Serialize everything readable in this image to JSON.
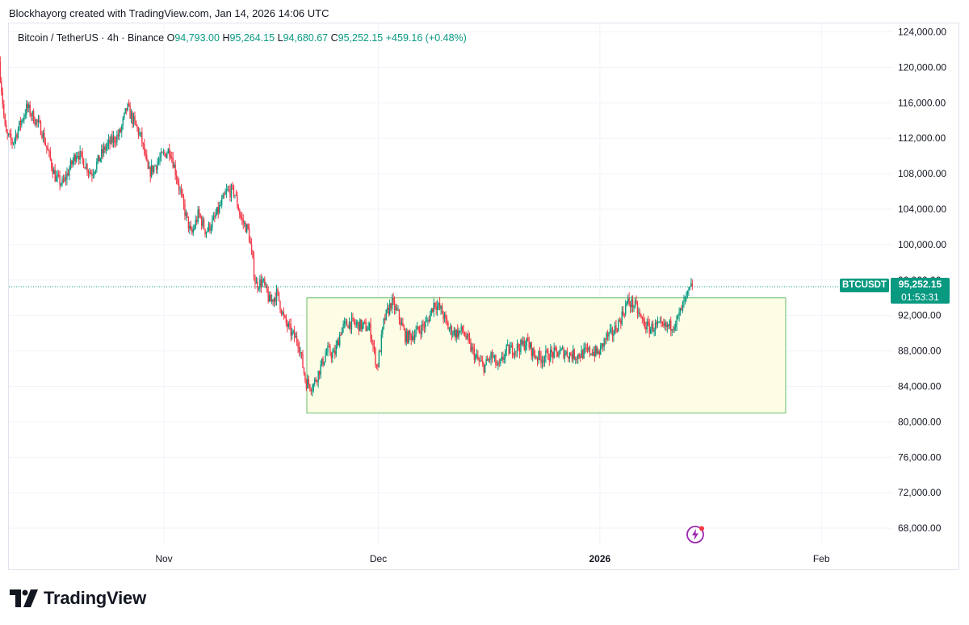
{
  "attribution": "Blockhayorg created with TradingView.com, Jan 14, 2026 14:06 UTC",
  "legend": {
    "symbol": "Bitcoin / TetherUS · 4h · Binance",
    "o_label": "O",
    "o_value": "94,793.00",
    "h_label": "H",
    "h_value": "95,264.15",
    "l_label": "L",
    "l_value": "94,680.67",
    "c_label": "C",
    "c_value": "95,252.15",
    "change": "+459.16 (+0.48%)"
  },
  "price_tag": {
    "symbol": "BTCUSDT",
    "price": "95,252.15",
    "countdown": "01:53:31"
  },
  "brand": "TradingView",
  "colors": {
    "up": "#089981",
    "down": "#f23645",
    "range_fill": "#fdfde6",
    "range_stroke": "#81c784"
  },
  "chart_data": {
    "type": "candlestick",
    "interval": "4h",
    "y_ticks": [
      "124,000.00",
      "120,000.00",
      "116,000.00",
      "112,000.00",
      "108,000.00",
      "104,000.00",
      "100,000.00",
      "96,000.00",
      "92,000.00",
      "88,000.00",
      "84,000.00",
      "80,000.00",
      "76,000.00",
      "72,000.00",
      "68,000.00"
    ],
    "x_ticks": [
      {
        "label": "Nov",
        "date": "2025-11-01",
        "bold": false
      },
      {
        "label": "Dec",
        "date": "2025-12-01",
        "bold": false
      },
      {
        "label": "2026",
        "date": "2026-01-01",
        "bold": true
      },
      {
        "label": "Feb",
        "date": "2026-02-01",
        "bold": false
      }
    ],
    "ylim": [
      64000,
      126500
    ],
    "last_price": 95252.15,
    "range_box": {
      "start": "2025-11-21",
      "end": "2026-01-27",
      "top": 94000,
      "bottom": 81000
    },
    "price_path": [
      [
        "2025-10-09",
        121500
      ],
      [
        "2025-10-10",
        112500
      ],
      [
        "2025-10-11",
        111500
      ],
      [
        "2025-10-13",
        115500
      ],
      [
        "2025-10-15",
        113000
      ],
      [
        "2025-10-17",
        107500
      ],
      [
        "2025-10-18",
        106800
      ],
      [
        "2025-10-20",
        110500
      ],
      [
        "2025-10-22",
        108000
      ],
      [
        "2025-10-24",
        111000
      ],
      [
        "2025-10-26",
        112500
      ],
      [
        "2025-10-27",
        115500
      ],
      [
        "2025-10-29",
        112000
      ],
      [
        "2025-10-30",
        108000
      ],
      [
        "2025-11-01",
        110000
      ],
      [
        "2025-11-02",
        110800
      ],
      [
        "2025-11-03",
        107500
      ],
      [
        "2025-11-04",
        104000
      ],
      [
        "2025-11-05",
        101000
      ],
      [
        "2025-11-06",
        103500
      ],
      [
        "2025-11-07",
        101500
      ],
      [
        "2025-11-08",
        102500
      ],
      [
        "2025-11-10",
        106000
      ],
      [
        "2025-11-11",
        106000
      ],
      [
        "2025-11-12",
        102800
      ],
      [
        "2025-11-13",
        101500
      ],
      [
        "2025-11-14",
        95500
      ],
      [
        "2025-11-15",
        95800
      ],
      [
        "2025-11-16",
        93500
      ],
      [
        "2025-11-17",
        94500
      ],
      [
        "2025-11-18",
        91500
      ],
      [
        "2025-11-19",
        90000
      ],
      [
        "2025-11-20",
        89000
      ],
      [
        "2025-11-21",
        84500
      ],
      [
        "2025-11-22",
        84000
      ],
      [
        "2025-11-23",
        86000
      ],
      [
        "2025-11-24",
        88000
      ],
      [
        "2025-11-25",
        87500
      ],
      [
        "2025-11-26",
        90500
      ],
      [
        "2025-11-27",
        91200
      ],
      [
        "2025-11-28",
        91000
      ],
      [
        "2025-11-29",
        90800
      ],
      [
        "2025-11-30",
        90500
      ],
      [
        "2025-12-01",
        86000
      ],
      [
        "2025-12-02",
        91500
      ],
      [
        "2025-12-03",
        93500
      ],
      [
        "2025-12-04",
        92000
      ],
      [
        "2025-12-05",
        89500
      ],
      [
        "2025-12-06",
        89800
      ],
      [
        "2025-12-07",
        90500
      ],
      [
        "2025-12-08",
        91200
      ],
      [
        "2025-12-09",
        93500
      ],
      [
        "2025-12-10",
        92500
      ],
      [
        "2025-12-11",
        90500
      ],
      [
        "2025-12-12",
        90000
      ],
      [
        "2025-12-13",
        90300
      ],
      [
        "2025-12-14",
        88500
      ],
      [
        "2025-12-15",
        87000
      ],
      [
        "2025-12-16",
        86200
      ],
      [
        "2025-12-17",
        87500
      ],
      [
        "2025-12-18",
        86000
      ],
      [
        "2025-12-19",
        88000
      ],
      [
        "2025-12-20",
        88200
      ],
      [
        "2025-12-21",
        88500
      ],
      [
        "2025-12-22",
        89000
      ],
      [
        "2025-12-23",
        87500
      ],
      [
        "2025-12-24",
        87200
      ],
      [
        "2025-12-25",
        87600
      ],
      [
        "2025-12-26",
        87700
      ],
      [
        "2025-12-27",
        87900
      ],
      [
        "2025-12-28",
        87600
      ],
      [
        "2025-12-29",
        87500
      ],
      [
        "2025-12-30",
        87800
      ],
      [
        "2025-12-31",
        88000
      ],
      [
        "2026-01-01",
        87700
      ],
      [
        "2026-01-02",
        89500
      ],
      [
        "2026-01-03",
        90000
      ],
      [
        "2026-01-04",
        91500
      ],
      [
        "2026-01-05",
        93500
      ],
      [
        "2026-01-06",
        93200
      ],
      [
        "2026-01-07",
        91500
      ],
      [
        "2026-01-08",
        90500
      ],
      [
        "2026-01-09",
        90800
      ],
      [
        "2026-01-10",
        90600
      ],
      [
        "2026-01-11",
        90800
      ],
      [
        "2026-01-12",
        91500
      ],
      [
        "2026-01-13",
        93500
      ],
      [
        "2026-01-14",
        95252
      ]
    ]
  }
}
